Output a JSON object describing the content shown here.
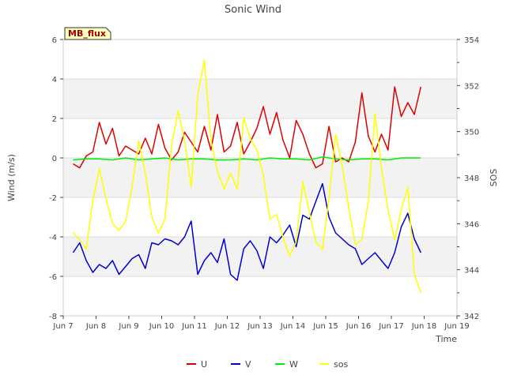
{
  "chart_data": {
    "type": "line",
    "title": "Sonic Wind",
    "annotation": "MB_flux",
    "xlabel": "Time",
    "ylabel_left": "Wind (m/s)",
    "ylabel_right": "SOS",
    "xlim": [
      7,
      19
    ],
    "ylim_left": [
      -8,
      6
    ],
    "ylim_right": [
      342,
      354
    ],
    "grid": true,
    "legend_position": "bottom-center",
    "x_ticks": [
      {
        "value": 7,
        "label": "Jun 7"
      },
      {
        "value": 8,
        "label": "Jun 8"
      },
      {
        "value": 9,
        "label": "Jun 9"
      },
      {
        "value": 10,
        "label": "Jun 10"
      },
      {
        "value": 11,
        "label": "Jun 11"
      },
      {
        "value": 12,
        "label": "Jun 12"
      },
      {
        "value": 13,
        "label": "Jun 13"
      },
      {
        "value": 14,
        "label": "Jun 14"
      },
      {
        "value": 15,
        "label": "Jun 15"
      },
      {
        "value": 16,
        "label": "Jun 16"
      },
      {
        "value": 17,
        "label": "Jun 17"
      },
      {
        "value": 18,
        "label": "Jun 18"
      },
      {
        "value": 19,
        "label": "Jun 19"
      }
    ],
    "y_ticks_left": [
      -8,
      -6,
      -4,
      -2,
      0,
      2,
      4,
      6
    ],
    "y_ticks_right": [
      342,
      344,
      346,
      348,
      350,
      352,
      354
    ],
    "series": [
      {
        "name": "U",
        "color": "#dd0000",
        "axis": "left",
        "x": [
          7.3,
          7.5,
          7.7,
          7.9,
          8.1,
          8.3,
          8.5,
          8.7,
          8.9,
          9.1,
          9.3,
          9.5,
          9.7,
          9.9,
          10.1,
          10.3,
          10.5,
          10.7,
          10.9,
          11.1,
          11.3,
          11.5,
          11.7,
          11.9,
          12.1,
          12.3,
          12.5,
          12.7,
          12.9,
          13.1,
          13.3,
          13.5,
          13.7,
          13.9,
          14.1,
          14.3,
          14.5,
          14.7,
          14.9,
          15.1,
          15.3,
          15.5,
          15.7,
          15.9,
          16.1,
          16.3,
          16.5,
          16.7,
          16.9,
          17.1,
          17.3,
          17.5,
          17.7,
          17.9
        ],
        "y": [
          -0.3,
          -0.5,
          0.1,
          0.3,
          1.8,
          0.7,
          1.5,
          0.1,
          0.6,
          0.4,
          0.2,
          1.0,
          0.2,
          1.7,
          0.5,
          -0.1,
          0.3,
          1.3,
          0.8,
          0.3,
          1.6,
          0.4,
          2.2,
          0.3,
          0.6,
          1.8,
          0.2,
          0.8,
          1.5,
          2.6,
          1.2,
          2.3,
          0.9,
          0.0,
          1.9,
          1.2,
          0.2,
          -0.5,
          -0.3,
          1.6,
          -0.2,
          0.0,
          -0.2,
          0.8,
          3.3,
          1.1,
          0.3,
          1.2,
          0.4,
          3.6,
          2.1,
          2.8,
          2.2,
          3.6
        ]
      },
      {
        "name": "V",
        "color": "#0000cc",
        "axis": "left",
        "x": [
          7.3,
          7.5,
          7.7,
          7.9,
          8.1,
          8.3,
          8.5,
          8.7,
          8.9,
          9.1,
          9.3,
          9.5,
          9.7,
          9.9,
          10.1,
          10.3,
          10.5,
          10.7,
          10.9,
          11.1,
          11.3,
          11.5,
          11.7,
          11.9,
          12.1,
          12.3,
          12.5,
          12.7,
          12.9,
          13.1,
          13.3,
          13.5,
          13.7,
          13.9,
          14.1,
          14.3,
          14.5,
          14.7,
          14.9,
          15.1,
          15.3,
          15.5,
          15.7,
          15.9,
          16.1,
          16.3,
          16.5,
          16.7,
          16.9,
          17.1,
          17.3,
          17.5,
          17.7,
          17.9
        ],
        "y": [
          -4.8,
          -4.3,
          -5.2,
          -5.8,
          -5.4,
          -5.6,
          -5.2,
          -5.9,
          -5.5,
          -5.1,
          -4.9,
          -5.6,
          -4.3,
          -4.4,
          -4.1,
          -4.2,
          -4.4,
          -4.0,
          -3.2,
          -5.9,
          -5.2,
          -4.8,
          -5.3,
          -4.1,
          -5.9,
          -6.2,
          -4.6,
          -4.2,
          -4.7,
          -5.6,
          -4.0,
          -4.3,
          -3.9,
          -3.4,
          -4.5,
          -2.9,
          -3.1,
          -2.2,
          -1.3,
          -3.0,
          -3.8,
          -4.1,
          -4.4,
          -4.6,
          -5.4,
          -5.1,
          -4.8,
          -5.2,
          -5.6,
          -4.8,
          -3.5,
          -2.8,
          -4.1,
          -4.8
        ]
      },
      {
        "name": "W",
        "color": "#00ee00",
        "axis": "left",
        "x": [
          7.3,
          7.7,
          8.1,
          8.5,
          8.9,
          9.3,
          9.7,
          10.1,
          10.5,
          10.9,
          11.3,
          11.7,
          12.1,
          12.5,
          12.9,
          13.3,
          13.7,
          14.1,
          14.5,
          14.9,
          15.3,
          15.7,
          16.1,
          16.5,
          16.9,
          17.3,
          17.7,
          17.9
        ],
        "y": [
          -0.1,
          -0.05,
          -0.05,
          -0.1,
          0.0,
          -0.1,
          -0.05,
          0.0,
          -0.1,
          -0.05,
          -0.05,
          -0.1,
          -0.1,
          -0.05,
          -0.1,
          0.0,
          -0.05,
          -0.05,
          -0.1,
          0.05,
          -0.05,
          -0.1,
          -0.05,
          -0.05,
          -0.1,
          0.0,
          0.0,
          0.0
        ]
      },
      {
        "name": "sos",
        "color": "#ffff00",
        "axis": "right",
        "x": [
          7.3,
          7.5,
          7.7,
          7.9,
          8.1,
          8.3,
          8.5,
          8.7,
          8.9,
          9.1,
          9.3,
          9.5,
          9.7,
          9.9,
          10.1,
          10.3,
          10.5,
          10.7,
          10.9,
          11.1,
          11.3,
          11.5,
          11.7,
          11.9,
          12.1,
          12.3,
          12.5,
          12.7,
          12.9,
          13.1,
          13.3,
          13.5,
          13.7,
          13.9,
          14.1,
          14.3,
          14.5,
          14.7,
          14.9,
          15.1,
          15.3,
          15.5,
          15.7,
          15.9,
          16.1,
          16.3,
          16.5,
          16.7,
          16.9,
          17.1,
          17.3,
          17.5,
          17.7,
          17.9
        ],
        "y": [
          345.6,
          345.3,
          344.9,
          347.0,
          348.4,
          347.1,
          346.0,
          345.7,
          346.1,
          347.6,
          349.6,
          348.2,
          346.3,
          345.6,
          346.2,
          349.4,
          350.9,
          349.6,
          347.6,
          351.6,
          353.1,
          349.6,
          348.3,
          347.5,
          348.2,
          347.5,
          350.6,
          349.7,
          349.2,
          348.1,
          346.2,
          346.4,
          345.4,
          344.6,
          345.2,
          347.8,
          346.5,
          345.2,
          344.9,
          347.1,
          349.9,
          348.5,
          346.7,
          345.1,
          345.3,
          347.0,
          350.8,
          348.4,
          346.6,
          345.3,
          346.6,
          347.6,
          343.8,
          343.0
        ]
      }
    ]
  }
}
